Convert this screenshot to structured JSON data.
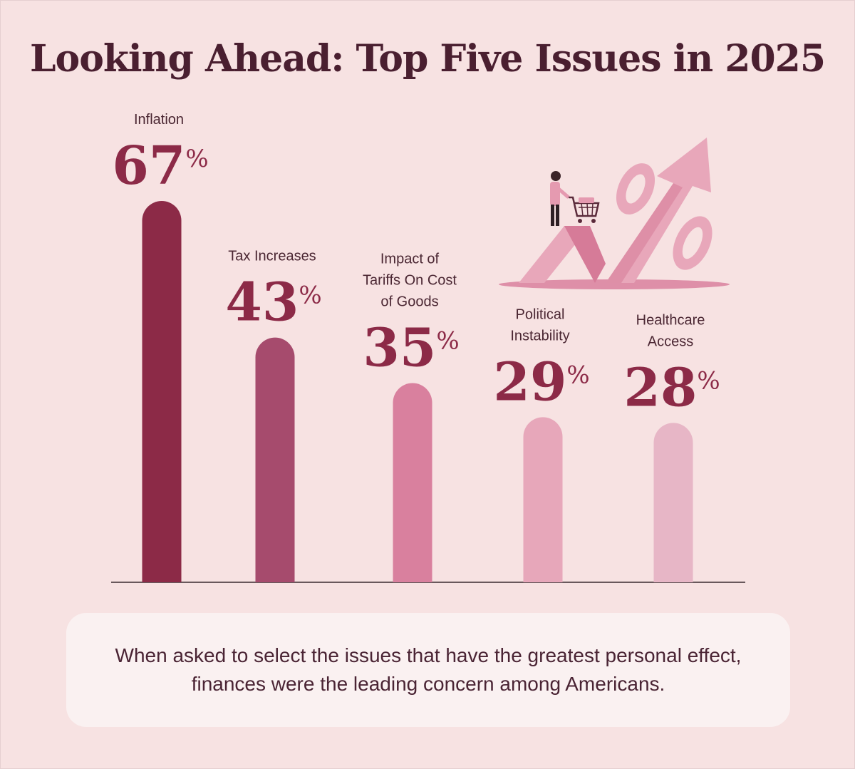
{
  "title": "Looking Ahead: Top Five Issues in 2025",
  "caption": "When asked to select the issues that have the greatest personal effect, finances were the leading concern among Americans.",
  "colors": {
    "background": "#f7e2e2",
    "title": "#4a1f30",
    "value_text": "#8c2a47",
    "baseline": "#3a2a30"
  },
  "illustration": {
    "icon": "shopper-cart-percent-arrow-icon"
  },
  "chart_data": {
    "type": "bar",
    "title": "Looking Ahead: Top Five Issues in 2025",
    "unit": "%",
    "categories": [
      [
        "Inflation"
      ],
      [
        "Tax Increases"
      ],
      [
        "Impact of",
        "Tariffs On Cost",
        "of Goods"
      ],
      [
        "Political",
        "Instability"
      ],
      [
        "Healthcare",
        "Access"
      ]
    ],
    "values": [
      67,
      43,
      35,
      29,
      28
    ],
    "bar_colors": [
      "#8c2a47",
      "#a64b6d",
      "#d9809e",
      "#e7a7ba",
      "#e7b6c6"
    ],
    "ylim": [
      0,
      100
    ],
    "grid": false,
    "legend": "none"
  }
}
